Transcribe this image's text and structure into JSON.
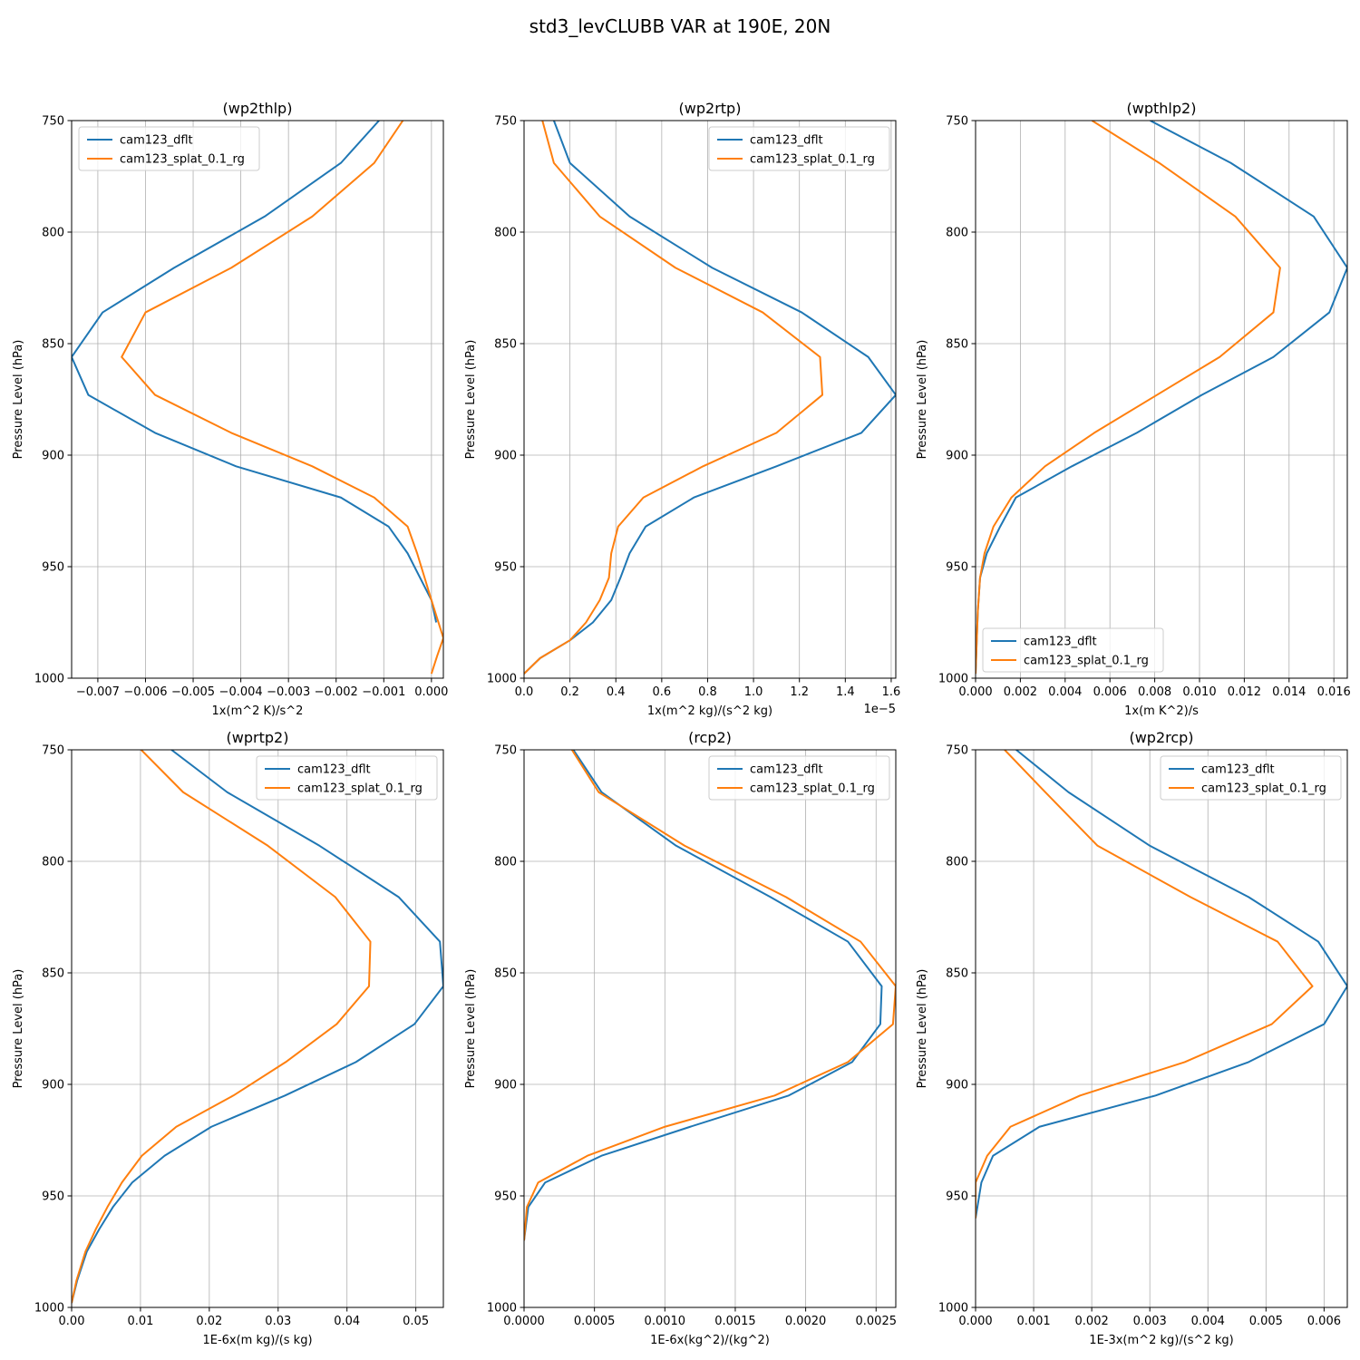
{
  "figure": {
    "suptitle": "std3_levCLUBB VAR at 190E, 20N"
  },
  "chart_data": [
    {
      "type": "line",
      "title": "(wp2thlp)",
      "xlabel": "1x(m^2 K)/s^2",
      "ylabel": "Pressure Level (hPa)",
      "xlim": [
        -0.00755,
        0.00025
      ],
      "ylim": [
        1000,
        750
      ],
      "xticks": [
        -0.007,
        -0.006,
        -0.005,
        -0.004,
        -0.003,
        -0.002,
        -0.001,
        0.0
      ],
      "xtick_labels": [
        "−0.007",
        "−0.006",
        "−0.005",
        "−0.004",
        "−0.003",
        "−0.002",
        "−0.001",
        "0.000"
      ],
      "yticks": [
        750,
        800,
        850,
        900,
        950,
        1000
      ],
      "ytick_labels": [
        "750",
        "800",
        "850",
        "900",
        "950",
        "1000"
      ],
      "x_offset_text": "",
      "grid": true,
      "legend_loc": "upper-left",
      "series": [
        {
          "name": "cam123_dflt",
          "color": "#1f77b4",
          "x": [
            -0.0011,
            -0.0019,
            -0.0035,
            -0.0054,
            -0.0069,
            -0.00755,
            -0.0072,
            -0.0058,
            -0.0041,
            -0.0019,
            -0.0009,
            -0.0005,
            0.0,
            0.0001
          ],
          "y": [
            750,
            769,
            793,
            816,
            836,
            856,
            873,
            890,
            905,
            919,
            932,
            944,
            965,
            975
          ]
        },
        {
          "name": "cam123_splat_0.1_rg",
          "color": "#ff7f0e",
          "x": [
            -0.0006,
            -0.0012,
            -0.0025,
            -0.0042,
            -0.006,
            -0.0065,
            -0.0058,
            -0.0042,
            -0.0025,
            -0.0012,
            -0.0005,
            -0.0003,
            0.0,
            0.00025,
            0.00012,
            0.0
          ],
          "y": [
            750,
            769,
            793,
            816,
            836,
            856,
            873,
            890,
            905,
            919,
            932,
            944,
            965,
            982,
            990,
            998
          ]
        }
      ]
    },
    {
      "type": "line",
      "title": "(wp2rtp)",
      "xlabel": "1x(m^2 kg)/(s^2 kg)",
      "ylabel": "Pressure Level (hPa)",
      "xlim": [
        0,
        1.62
      ],
      "ylim": [
        1000,
        750
      ],
      "xticks": [
        0.0,
        0.2,
        0.4,
        0.6,
        0.8,
        1.0,
        1.2,
        1.4,
        1.6
      ],
      "xtick_labels": [
        "0.0",
        "0.2",
        "0.4",
        "0.6",
        "0.8",
        "1.0",
        "1.2",
        "1.4",
        "1.6"
      ],
      "yticks": [
        750,
        800,
        850,
        900,
        950,
        1000
      ],
      "ytick_labels": [
        "750",
        "800",
        "850",
        "900",
        "950",
        "1000"
      ],
      "x_offset_text": "1e−5",
      "grid": true,
      "legend_loc": "upper-right",
      "series": [
        {
          "name": "cam123_dflt",
          "color": "#1f77b4",
          "x": [
            0.13,
            0.2,
            0.46,
            0.82,
            1.21,
            1.5,
            1.62,
            1.47,
            1.1,
            0.74,
            0.53,
            0.46,
            0.42,
            0.38,
            0.3,
            0.2,
            0.07,
            0.0
          ],
          "y": [
            750,
            769,
            793,
            816,
            836,
            856,
            873,
            890,
            905,
            919,
            932,
            944,
            955,
            965,
            975,
            983,
            991,
            998
          ]
        },
        {
          "name": "cam123_splat_0.1_rg",
          "color": "#ff7f0e",
          "x": [
            0.08,
            0.13,
            0.33,
            0.66,
            1.04,
            1.29,
            1.3,
            1.1,
            0.78,
            0.52,
            0.41,
            0.38,
            0.37,
            0.33,
            0.27,
            0.2,
            0.07,
            0.0
          ],
          "y": [
            750,
            769,
            793,
            816,
            836,
            856,
            873,
            890,
            905,
            919,
            932,
            944,
            955,
            965,
            975,
            983,
            991,
            998
          ]
        }
      ]
    },
    {
      "type": "line",
      "title": "(wpthlp2)",
      "xlabel": "1x(m K^2)/s",
      "ylabel": "Pressure Level (hPa)",
      "xlim": [
        0,
        0.0166
      ],
      "ylim": [
        1000,
        750
      ],
      "xticks": [
        0.0,
        0.002,
        0.004,
        0.006,
        0.008,
        0.01,
        0.012,
        0.014,
        0.016
      ],
      "xtick_labels": [
        "0.000",
        "0.002",
        "0.004",
        "0.006",
        "0.008",
        "0.010",
        "0.012",
        "0.014",
        "0.016"
      ],
      "yticks": [
        750,
        800,
        850,
        900,
        950,
        1000
      ],
      "ytick_labels": [
        "750",
        "800",
        "850",
        "900",
        "950",
        "1000"
      ],
      "x_offset_text": "",
      "grid": true,
      "legend_loc": "lower-left",
      "series": [
        {
          "name": "cam123_dflt",
          "color": "#1f77b4",
          "x": [
            0.0078,
            0.0114,
            0.0151,
            0.0166,
            0.0158,
            0.0133,
            0.0101,
            0.0072,
            0.0043,
            0.0018,
            0.0011,
            0.0005,
            0.0002,
            0.0001,
            0.0
          ],
          "y": [
            750,
            769,
            793,
            816,
            836,
            856,
            873,
            890,
            905,
            919,
            932,
            944,
            955,
            970,
            998
          ]
        },
        {
          "name": "cam123_splat_0.1_rg",
          "color": "#ff7f0e",
          "x": [
            0.0052,
            0.0082,
            0.0116,
            0.0136,
            0.0133,
            0.0109,
            0.0081,
            0.0053,
            0.0031,
            0.0016,
            0.0008,
            0.0004,
            0.0002,
            0.0001,
            0.0
          ],
          "y": [
            750,
            769,
            793,
            816,
            836,
            856,
            873,
            890,
            905,
            919,
            932,
            944,
            955,
            970,
            998
          ]
        }
      ]
    },
    {
      "type": "line",
      "title": "(wprtp2)",
      "xlabel": "1E-6x(m kg)/(s kg)",
      "ylabel": "Pressure Level (hPa)",
      "xlim": [
        0,
        0.054
      ],
      "ylim": [
        1000,
        750
      ],
      "xticks": [
        0.0,
        0.01,
        0.02,
        0.03,
        0.04,
        0.05
      ],
      "xtick_labels": [
        "0.00",
        "0.01",
        "0.02",
        "0.03",
        "0.04",
        "0.05"
      ],
      "yticks": [
        750,
        800,
        850,
        900,
        950,
        1000
      ],
      "ytick_labels": [
        "750",
        "800",
        "850",
        "900",
        "950",
        "1000"
      ],
      "x_offset_text": "",
      "grid": true,
      "legend_loc": "upper-right",
      "series": [
        {
          "name": "cam123_dflt",
          "color": "#1f77b4",
          "x": [
            0.0145,
            0.0226,
            0.036,
            0.0475,
            0.0535,
            0.054,
            0.0498,
            0.0413,
            0.031,
            0.0203,
            0.0135,
            0.0088,
            0.006,
            0.004,
            0.0022,
            0.0008,
            0.0
          ],
          "y": [
            750,
            769,
            793,
            816,
            836,
            856,
            873,
            890,
            905,
            919,
            932,
            944,
            955,
            965,
            975,
            988,
            998
          ]
        },
        {
          "name": "cam123_splat_0.1_rg",
          "color": "#ff7f0e",
          "x": [
            0.0101,
            0.0162,
            0.0285,
            0.0383,
            0.0434,
            0.0432,
            0.0385,
            0.0311,
            0.0235,
            0.0152,
            0.0102,
            0.0073,
            0.0052,
            0.0035,
            0.002,
            0.0007,
            0.0
          ],
          "y": [
            750,
            769,
            793,
            816,
            836,
            856,
            873,
            890,
            905,
            919,
            932,
            944,
            955,
            965,
            975,
            988,
            998
          ]
        }
      ]
    },
    {
      "type": "line",
      "title": "(rcp2)",
      "xlabel": "1E-6x(kg^2)/(kg^2)",
      "ylabel": "Pressure Level (hPa)",
      "xlim": [
        0,
        0.00264
      ],
      "ylim": [
        1000,
        750
      ],
      "xticks": [
        0.0,
        0.0005,
        0.001,
        0.0015,
        0.002,
        0.0025
      ],
      "xtick_labels": [
        "0.0000",
        "0.0005",
        "0.0010",
        "0.0015",
        "0.0020",
        "0.0025"
      ],
      "yticks": [
        750,
        800,
        850,
        900,
        950,
        1000
      ],
      "ytick_labels": [
        "750",
        "800",
        "850",
        "900",
        "950",
        "1000"
      ],
      "x_offset_text": "",
      "grid": true,
      "legend_loc": "upper-right",
      "series": [
        {
          "name": "cam123_dflt",
          "color": "#1f77b4",
          "x": [
            0.00035,
            0.00055,
            0.00108,
            0.00175,
            0.0023,
            0.00254,
            0.00253,
            0.00233,
            0.00188,
            0.00118,
            0.00055,
            0.00015,
            3e-05,
            0.0
          ],
          "y": [
            750,
            769,
            793,
            816,
            836,
            856,
            873,
            890,
            905,
            919,
            932,
            944,
            955,
            970
          ]
        },
        {
          "name": "cam123_splat_0.1_rg",
          "color": "#ff7f0e",
          "x": [
            0.00034,
            0.00053,
            0.00114,
            0.00186,
            0.00239,
            0.00264,
            0.00262,
            0.0023,
            0.00178,
            0.001,
            0.00045,
            0.0001,
            2e-05,
            0.0
          ],
          "y": [
            750,
            769,
            793,
            816,
            836,
            856,
            873,
            890,
            905,
            919,
            932,
            944,
            955,
            970
          ]
        }
      ]
    },
    {
      "type": "line",
      "title": "(wp2rcp)",
      "xlabel": "1E-3x(m^2 kg)/(s^2 kg)",
      "ylabel": "Pressure Level (hPa)",
      "xlim": [
        0,
        0.0064
      ],
      "ylim": [
        1000,
        750
      ],
      "xticks": [
        0.0,
        0.001,
        0.002,
        0.003,
        0.004,
        0.005,
        0.006
      ],
      "xtick_labels": [
        "0.000",
        "0.001",
        "0.002",
        "0.003",
        "0.004",
        "0.005",
        "0.006"
      ],
      "yticks": [
        750,
        800,
        850,
        900,
        950,
        1000
      ],
      "ytick_labels": [
        "750",
        "800",
        "850",
        "900",
        "950",
        "1000"
      ],
      "x_offset_text": "",
      "grid": true,
      "legend_loc": "upper-right",
      "series": [
        {
          "name": "cam123_dflt",
          "color": "#1f77b4",
          "x": [
            0.0007,
            0.0016,
            0.003,
            0.0047,
            0.0059,
            0.0064,
            0.006,
            0.0047,
            0.0031,
            0.0011,
            0.0003,
            0.0001,
            0.0
          ],
          "y": [
            750,
            769,
            793,
            816,
            836,
            856,
            873,
            890,
            905,
            919,
            932,
            944,
            960
          ]
        },
        {
          "name": "cam123_splat_0.1_rg",
          "color": "#ff7f0e",
          "x": [
            0.0005,
            0.0012,
            0.0021,
            0.0037,
            0.0052,
            0.0058,
            0.0051,
            0.0036,
            0.0018,
            0.0006,
            0.0002,
            0.0,
            0.0
          ],
          "y": [
            750,
            769,
            793,
            816,
            836,
            856,
            873,
            890,
            905,
            919,
            932,
            944,
            960
          ]
        }
      ]
    }
  ]
}
